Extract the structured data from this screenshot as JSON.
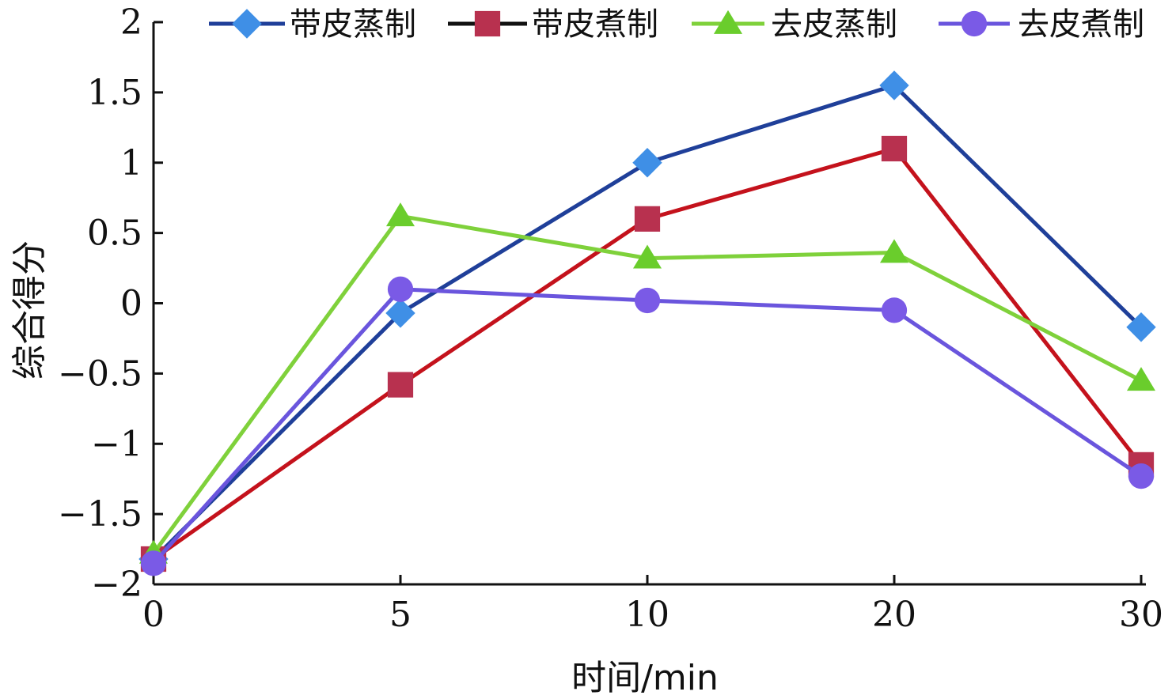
{
  "chart_data": {
    "type": "line",
    "x": [
      0,
      5,
      10,
      20,
      30
    ],
    "x_tick_labels": [
      "0",
      "5",
      "10",
      "20",
      "30"
    ],
    "y_ticks": [
      2,
      1.5,
      1,
      0.5,
      0,
      -0.5,
      -1,
      -1.5,
      -2
    ],
    "y_tick_labels": [
      "2",
      "1.5",
      "1",
      "0.5",
      "0",
      "−0.5",
      "−1",
      "−1.5",
      "−2"
    ],
    "ylim": [
      -2,
      2
    ],
    "x_scale": "categorical-evenly-spaced",
    "xlabel": "时间/min",
    "ylabel": "综合得分",
    "grid": false,
    "legend_position": "top",
    "series": [
      {
        "name": "带皮蒸制",
        "color": "#1f3f99",
        "marker_color": "#3f8fe6",
        "marker": "diamond",
        "values": [
          -1.82,
          -0.07,
          1.0,
          1.55,
          -0.17
        ]
      },
      {
        "name": "带皮煮制",
        "color": "#c4121c",
        "marker_color": "#b8314f",
        "marker": "square",
        "values": [
          -1.82,
          -0.58,
          0.6,
          1.1,
          -1.15
        ]
      },
      {
        "name": "去皮蒸制",
        "color": "#7fd13b",
        "marker_color": "#6acd2c",
        "marker": "triangle",
        "values": [
          -1.78,
          0.62,
          0.32,
          0.36,
          -0.55
        ]
      },
      {
        "name": "去皮煮制",
        "color": "#6a55dd",
        "marker_color": "#7a5ae6",
        "marker": "circle",
        "values": [
          -1.85,
          0.1,
          0.02,
          -0.05,
          -1.23
        ]
      }
    ]
  }
}
